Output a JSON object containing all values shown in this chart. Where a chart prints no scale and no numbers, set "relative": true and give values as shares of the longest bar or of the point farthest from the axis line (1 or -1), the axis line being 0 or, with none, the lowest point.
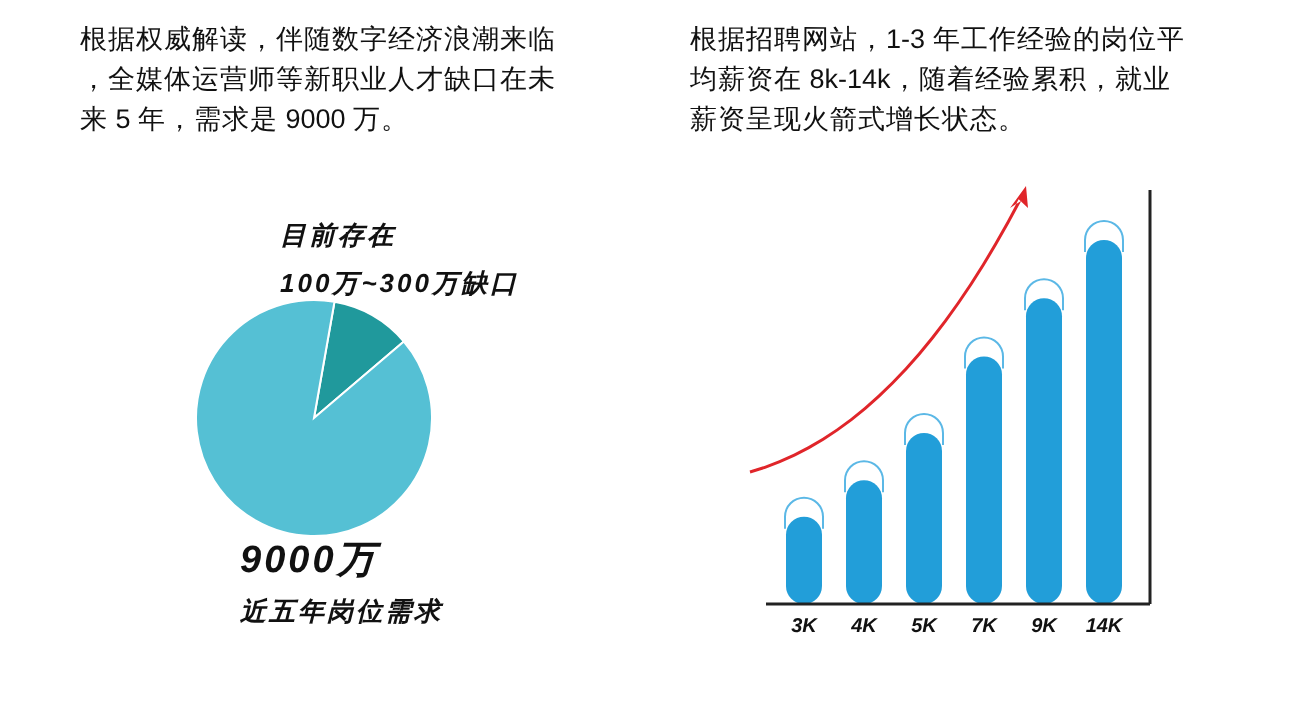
{
  "chart_data": [
    {
      "type": "pie",
      "title": "根据权威解读，伴随数字经济浪潮来临，全媒体运营师等新职业人才缺口在未来 5 年，需求是 9000 万。",
      "categories": [
        "目前存在100万~300万缺口",
        "9000万近五年岗位需求"
      ],
      "values": [
        11,
        89
      ],
      "colors": [
        "#20999c",
        "#55c0d4"
      ]
    },
    {
      "type": "bar",
      "title": "根据招聘网站，1-3 年工作经验的岗位平均薪资在 8k-14k，随着经验累积，就业薪资呈现火箭式增长状态。",
      "categories": [
        "3K",
        "4K",
        "5K",
        "7K",
        "9K",
        "14K"
      ],
      "values": [
        0.24,
        0.34,
        0.47,
        0.68,
        0.84,
        1
      ],
      "color": "#229ed9",
      "relative": true
    }
  ]
}
